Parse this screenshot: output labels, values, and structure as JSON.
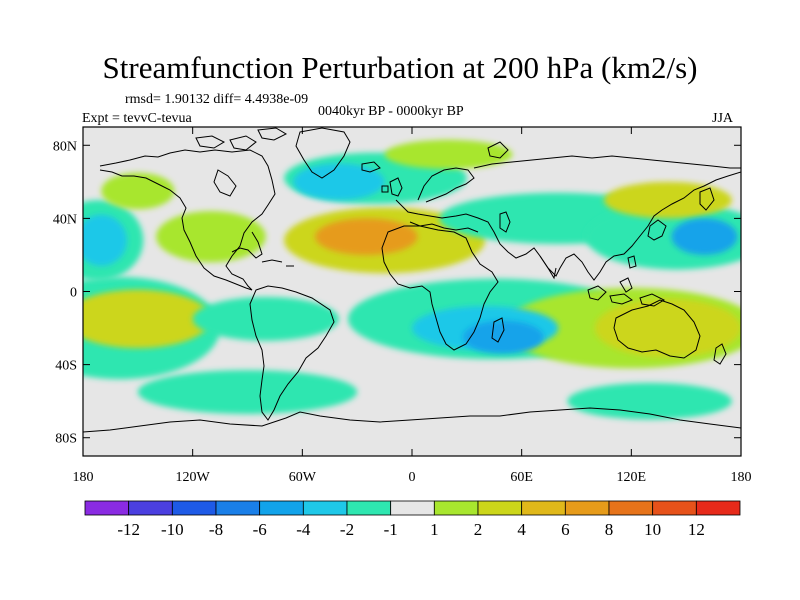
{
  "header": {
    "title": "Streamfunction Perturbation at 200 hPa (km2/s)",
    "stats": "rmsd= 1.90132 diff= 4.4938e-09",
    "experiment": "Expt = tevvC-tevua",
    "period": "0040kyr BP - 0000kyr BP",
    "season": "JJA"
  },
  "axes": {
    "y_ticks": [
      {
        "lat": 80,
        "label": "80N"
      },
      {
        "lat": 40,
        "label": "40N"
      },
      {
        "lat": 0,
        "label": "0"
      },
      {
        "lat": -40,
        "label": "40S"
      },
      {
        "lat": -80,
        "label": "80S"
      }
    ],
    "x_ticks": [
      {
        "lon": -180,
        "label": "180"
      },
      {
        "lon": -120,
        "label": "120W"
      },
      {
        "lon": -60,
        "label": "60W"
      },
      {
        "lon": 0,
        "label": "0"
      },
      {
        "lon": 60,
        "label": "60E"
      },
      {
        "lon": 120,
        "label": "120E"
      },
      {
        "lon": 180,
        "label": "180"
      }
    ],
    "lon_range": [
      -180,
      180
    ],
    "lat_range": [
      -90,
      90
    ]
  },
  "colorbar": {
    "colors": [
      "#8A2BE2",
      "#4B3FE0",
      "#1E5AE6",
      "#1A7FE8",
      "#12A3EA",
      "#1FC8E8",
      "#2EE6B0",
      "#E6E6E6",
      "#A8E62E",
      "#CCD61A",
      "#E0B81A",
      "#E69B1A",
      "#E6731A",
      "#E6521A",
      "#E62A1A"
    ],
    "labels": [
      "-12",
      "-10",
      "-8",
      "-6",
      "-4",
      "-2",
      "-1",
      "1",
      "2",
      "4",
      "6",
      "8",
      "10",
      "12"
    ]
  },
  "chart_data": {
    "type": "filled-contour-map",
    "variable": "Streamfunction Perturbation",
    "level_hPa": 200,
    "units": "km2/s",
    "levels": [
      -12,
      -10,
      -8,
      -6,
      -4,
      -2,
      -1,
      1,
      2,
      4,
      6,
      8,
      10,
      12
    ],
    "anomalies": [
      {
        "lon": -25,
        "lat": 30,
        "value": 7,
        "rlon": 28,
        "rlat": 10
      },
      {
        "lon": -15,
        "lat": 28,
        "value": 2.5,
        "rlon": 55,
        "rlat": 18
      },
      {
        "lon": -170,
        "lat": 28,
        "value": -4,
        "rlon": 14,
        "rlat": 14
      },
      {
        "lon": -172,
        "lat": 28,
        "value": -1.5,
        "rlon": 25,
        "rlat": 22
      },
      {
        "lon": -110,
        "lat": 30,
        "value": 1.5,
        "rlon": 30,
        "rlat": 14
      },
      {
        "lon": -150,
        "lat": 55,
        "value": 1.5,
        "rlon": 20,
        "rlat": 10
      },
      {
        "lon": -40,
        "lat": 60,
        "value": -3,
        "rlon": 25,
        "rlat": 10
      },
      {
        "lon": -20,
        "lat": 62,
        "value": -1.5,
        "rlon": 50,
        "rlat": 14
      },
      {
        "lon": 20,
        "lat": 75,
        "value": 1.5,
        "rlon": 35,
        "rlat": 8
      },
      {
        "lon": 80,
        "lat": 40,
        "value": -1.5,
        "rlon": 65,
        "rlat": 14
      },
      {
        "lon": 160,
        "lat": 30,
        "value": -6,
        "rlon": 18,
        "rlat": 10
      },
      {
        "lon": 145,
        "lat": 30,
        "value": -1.5,
        "rlon": 50,
        "rlat": 18
      },
      {
        "lon": 140,
        "lat": 50,
        "value": 3,
        "rlon": 35,
        "rlat": 10
      },
      {
        "lon": -150,
        "lat": -15,
        "value": 3,
        "rlon": 40,
        "rlat": 16
      },
      {
        "lon": -160,
        "lat": -20,
        "value": -1.5,
        "rlon": 55,
        "rlat": 28
      },
      {
        "lon": -80,
        "lat": -15,
        "value": -1.5,
        "rlon": 40,
        "rlat": 12
      },
      {
        "lon": -90,
        "lat": -55,
        "value": -1.5,
        "rlon": 60,
        "rlat": 12
      },
      {
        "lon": 40,
        "lat": -20,
        "value": -4,
        "rlon": 40,
        "rlat": 12
      },
      {
        "lon": 50,
        "lat": -25,
        "value": -5,
        "rlon": 22,
        "rlat": 9
      },
      {
        "lon": 45,
        "lat": -15,
        "value": -1.5,
        "rlon": 80,
        "rlat": 22
      },
      {
        "lon": 140,
        "lat": -20,
        "value": 3,
        "rlon": 40,
        "rlat": 16
      },
      {
        "lon": 120,
        "lat": -20,
        "value": 1.5,
        "rlon": 70,
        "rlat": 22
      },
      {
        "lon": 130,
        "lat": -60,
        "value": -1.5,
        "rlon": 45,
        "rlat": 10
      }
    ]
  }
}
